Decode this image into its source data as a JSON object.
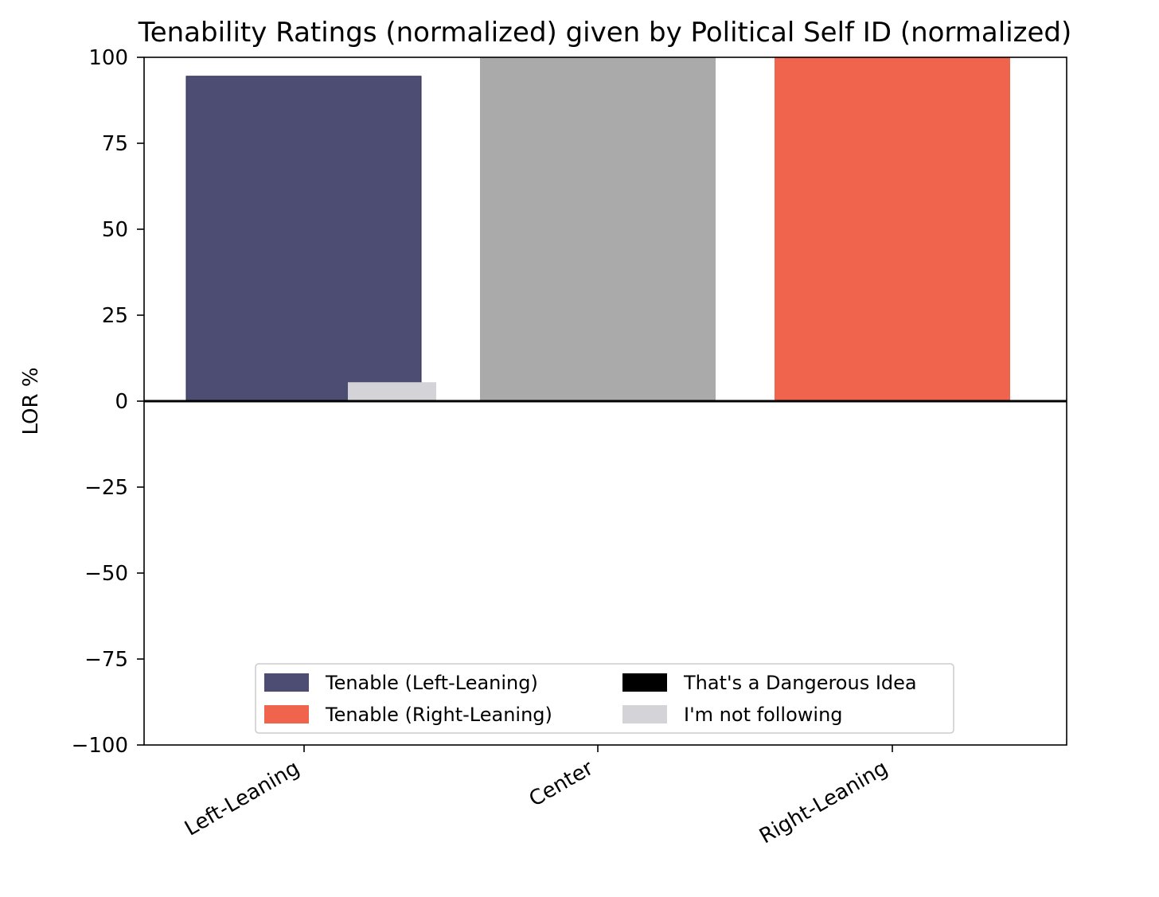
{
  "chart_data": {
    "type": "bar",
    "title": "Tenability Ratings (normalized) given by Political Self ID (normalized)",
    "xlabel": "",
    "ylabel": "LOR %",
    "ylim": [
      -100,
      100
    ],
    "yticks": [
      100,
      75,
      50,
      25,
      0,
      -25,
      -50,
      -75,
      -100
    ],
    "ytick_labels": [
      "100",
      "75",
      "50",
      "25",
      "0",
      "−25",
      "−50",
      "−75",
      "−100"
    ],
    "categories": [
      "Left-Leaning",
      "Center",
      "Right-Leaning"
    ],
    "bars": [
      {
        "category": "Left-Leaning",
        "series": "Tenable (Left-Leaning)",
        "value": 94.5,
        "color": "#4d4d74"
      },
      {
        "category": "Left-Leaning",
        "series": "I'm not following",
        "value": 5.5,
        "color": "#d3d3d8"
      },
      {
        "category": "Center",
        "series": "",
        "value": 100,
        "color": "#aaaaaa"
      },
      {
        "category": "Right-Leaning",
        "series": "Tenable (Right-Leaning)",
        "value": 100,
        "color": "#f0644d"
      }
    ],
    "legend": {
      "placement": "lower center",
      "entries": [
        {
          "label": "Tenable (Left-Leaning)",
          "color": "#4d4d74"
        },
        {
          "label": "Tenable (Right-Leaning)",
          "color": "#f0644d"
        },
        {
          "label": "That's a Dangerous Idea",
          "color": "#000000"
        },
        {
          "label": "I'm not following",
          "color": "#d3d3d8"
        }
      ]
    },
    "zero_line": true,
    "grid": false
  }
}
